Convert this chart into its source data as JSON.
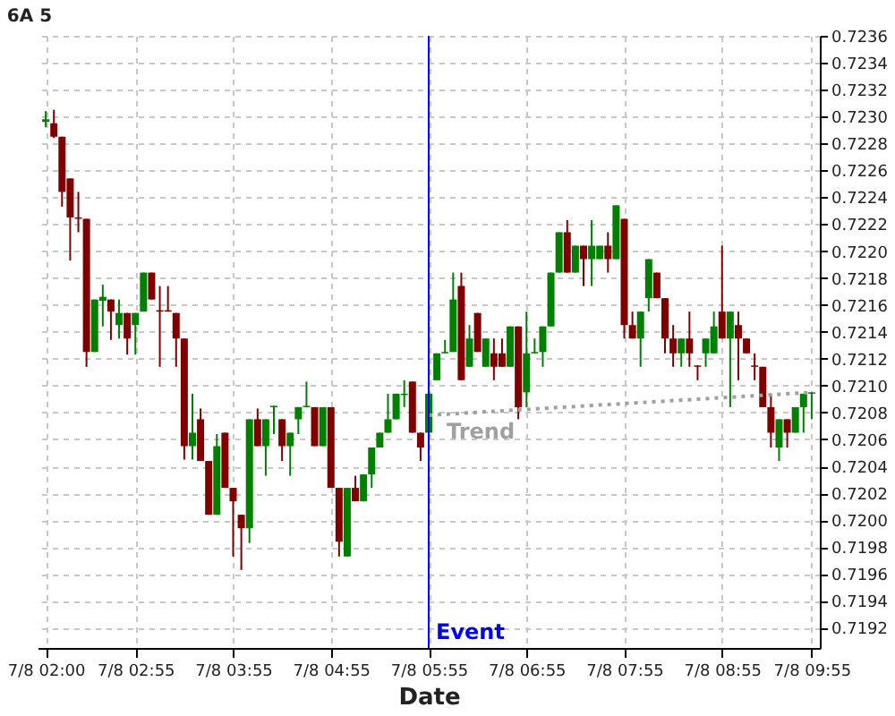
{
  "chart_data": {
    "type": "candlestick",
    "title": "6A 5",
    "xlabel": "Date",
    "categories": [
      "7/8 02:00",
      null,
      null,
      null,
      null,
      null,
      null,
      null,
      null,
      null,
      null,
      "7/8 02:55",
      null,
      null,
      null,
      null,
      null,
      null,
      null,
      null,
      null,
      null,
      null,
      "7/8 03:55",
      null,
      null,
      null,
      null,
      null,
      null,
      null,
      null,
      null,
      null,
      null,
      "7/8 04:55",
      null,
      null,
      null,
      null,
      null,
      null,
      null,
      null,
      null,
      null,
      null,
      "7/8 05:55",
      null,
      null,
      null,
      null,
      null,
      null,
      null,
      null,
      null,
      null,
      null,
      "7/8 06:55",
      null,
      null,
      null,
      null,
      null,
      null,
      null,
      null,
      null,
      null,
      null,
      "7/8 07:55",
      null,
      null,
      null,
      null,
      null,
      null,
      null,
      null,
      null,
      null,
      null,
      "7/8 08:55",
      null,
      null,
      null,
      null,
      null,
      null,
      null,
      null,
      null,
      null,
      "7/8 09:55"
    ],
    "ohlc": [
      [
        0.72296,
        0.72304,
        0.72292,
        0.72298
      ],
      [
        0.72295,
        0.72305,
        0.72284,
        0.72285
      ],
      [
        0.72285,
        0.72285,
        0.72233,
        0.72244
      ],
      [
        0.72254,
        0.72254,
        0.72193,
        0.72225
      ],
      [
        0.72225,
        0.72244,
        0.72214,
        0.72224
      ],
      [
        0.72224,
        0.72224,
        0.72114,
        0.72125
      ],
      [
        0.72125,
        0.72164,
        0.72125,
        0.72164
      ],
      [
        0.72163,
        0.72175,
        0.72144,
        0.72166
      ],
      [
        0.72164,
        0.72164,
        0.72134,
        0.72155
      ],
      [
        0.72145,
        0.72164,
        0.72135,
        0.72154
      ],
      [
        0.72154,
        0.72154,
        0.72123,
        0.72135
      ],
      [
        0.72145,
        0.72154,
        0.72123,
        0.72154
      ],
      [
        0.72155,
        0.72184,
        0.72155,
        0.72184
      ],
      [
        0.72184,
        0.72184,
        0.72164,
        0.72164
      ],
      [
        0.72156,
        0.72174,
        0.72114,
        0.72155
      ],
      [
        0.72156,
        0.72174,
        0.72155,
        0.72155
      ],
      [
        0.72154,
        0.72154,
        0.72114,
        0.72135
      ],
      [
        0.72135,
        0.72135,
        0.72045,
        0.72055
      ],
      [
        0.72055,
        0.72094,
        0.72045,
        0.72065
      ],
      [
        0.72075,
        0.72083,
        0.72044,
        0.72044
      ],
      [
        0.72044,
        0.72044,
        0.72004,
        0.72004
      ],
      [
        0.72004,
        0.72064,
        0.72004,
        0.72055
      ],
      [
        0.72065,
        0.72065,
        0.72024,
        0.72024
      ],
      [
        0.72024,
        0.72024,
        0.71973,
        0.72014
      ],
      [
        0.72004,
        0.72004,
        0.71963,
        0.71994
      ],
      [
        0.71994,
        0.72075,
        0.71983,
        0.72075
      ],
      [
        0.72075,
        0.72083,
        0.72055,
        0.72055
      ],
      [
        0.72055,
        0.72075,
        0.72033,
        0.72075
      ],
      [
        0.72084,
        0.72085,
        0.72064,
        0.72085
      ],
      [
        0.72075,
        0.72075,
        0.72044,
        0.72055
      ],
      [
        0.72055,
        0.72065,
        0.72033,
        0.72065
      ],
      [
        0.72075,
        0.72084,
        0.72064,
        0.72084
      ],
      [
        0.72084,
        0.72103,
        0.72084,
        0.72085
      ],
      [
        0.72084,
        0.72084,
        0.72055,
        0.72055
      ],
      [
        0.72055,
        0.72084,
        0.72055,
        0.72084
      ],
      [
        0.72084,
        0.72084,
        0.72024,
        0.72024
      ],
      [
        0.72024,
        0.72024,
        0.71973,
        0.71984
      ],
      [
        0.71973,
        0.72024,
        0.71973,
        0.72024
      ],
      [
        0.72024,
        0.72033,
        0.72014,
        0.72014
      ],
      [
        0.72014,
        0.72034,
        0.72014,
        0.72034
      ],
      [
        0.72034,
        0.72054,
        0.72024,
        0.72054
      ],
      [
        0.72054,
        0.72065,
        0.72054,
        0.72065
      ],
      [
        0.72065,
        0.72094,
        0.72065,
        0.72075
      ],
      [
        0.72075,
        0.72094,
        0.72075,
        0.72094
      ],
      [
        0.72093,
        0.72104,
        0.72084,
        0.72094
      ],
      [
        0.72103,
        0.72103,
        0.72065,
        0.72065
      ],
      [
        0.72065,
        0.72065,
        0.72044,
        0.72054
      ],
      [
        0.72065,
        0.72094,
        0.72065,
        0.72094
      ],
      [
        0.72104,
        0.72124,
        0.72104,
        0.72124
      ],
      [
        0.72124,
        0.72134,
        0.72124,
        0.72125
      ],
      [
        0.72125,
        0.72184,
        0.72125,
        0.72164
      ],
      [
        0.72174,
        0.72184,
        0.72104,
        0.72104
      ],
      [
        0.72114,
        0.72145,
        0.72114,
        0.72135
      ],
      [
        0.72154,
        0.72154,
        0.72125,
        0.72125
      ],
      [
        0.72114,
        0.72135,
        0.72114,
        0.72135
      ],
      [
        0.72124,
        0.72135,
        0.72104,
        0.72114
      ],
      [
        0.72124,
        0.72135,
        0.72114,
        0.72114
      ],
      [
        0.72114,
        0.72144,
        0.72114,
        0.72144
      ],
      [
        0.72144,
        0.72144,
        0.72075,
        0.72084
      ],
      [
        0.72095,
        0.72155,
        0.72084,
        0.72124
      ],
      [
        0.72124,
        0.72135,
        0.72124,
        0.72125
      ],
      [
        0.72125,
        0.72144,
        0.72114,
        0.72144
      ],
      [
        0.72144,
        0.72184,
        0.72144,
        0.72184
      ],
      [
        0.72184,
        0.72214,
        0.72184,
        0.72214
      ],
      [
        0.72214,
        0.72223,
        0.72184,
        0.72184
      ],
      [
        0.72184,
        0.72204,
        0.72184,
        0.72204
      ],
      [
        0.72204,
        0.72204,
        0.72174,
        0.72194
      ],
      [
        0.72194,
        0.72223,
        0.72174,
        0.72204
      ],
      [
        0.72194,
        0.72204,
        0.72194,
        0.72204
      ],
      [
        0.72204,
        0.72214,
        0.72184,
        0.72194
      ],
      [
        0.72194,
        0.72234,
        0.72194,
        0.72234
      ],
      [
        0.72224,
        0.72224,
        0.72135,
        0.72145
      ],
      [
        0.72145,
        0.72155,
        0.72135,
        0.72135
      ],
      [
        0.72135,
        0.72155,
        0.72114,
        0.72155
      ],
      [
        0.72165,
        0.72194,
        0.72155,
        0.72194
      ],
      [
        0.72184,
        0.72184,
        0.72165,
        0.72165
      ],
      [
        0.72165,
        0.72165,
        0.72124,
        0.72135
      ],
      [
        0.72135,
        0.72145,
        0.72114,
        0.72124
      ],
      [
        0.72124,
        0.72135,
        0.72114,
        0.72135
      ],
      [
        0.72135,
        0.72155,
        0.72114,
        0.72124
      ],
      [
        0.72115,
        0.72115,
        0.72104,
        0.72114
      ],
      [
        0.72124,
        0.72135,
        0.72114,
        0.72135
      ],
      [
        0.72124,
        0.72155,
        0.72124,
        0.72144
      ],
      [
        0.72155,
        0.72204,
        0.72135,
        0.72135
      ],
      [
        0.72135,
        0.72155,
        0.72084,
        0.72155
      ],
      [
        0.72145,
        0.72155,
        0.72104,
        0.72135
      ],
      [
        0.72135,
        0.72135,
        0.72124,
        0.72124
      ],
      [
        0.72115,
        0.72124,
        0.72104,
        0.72114
      ],
      [
        0.72114,
        0.72114,
        0.72084,
        0.72084
      ],
      [
        0.72084,
        0.72094,
        0.72054,
        0.72065
      ],
      [
        0.72054,
        0.72075,
        0.72044,
        0.72075
      ],
      [
        0.72075,
        0.72075,
        0.72054,
        0.72065
      ],
      [
        0.72065,
        0.72084,
        0.72065,
        0.72084
      ],
      [
        0.72084,
        0.72094,
        0.72065,
        0.72094
      ],
      [
        0.72094,
        0.72095,
        0.72075,
        0.72095
      ]
    ],
    "colors": [
      "#008000",
      "#800000",
      "#800000",
      "#800000",
      "#800000",
      "#800000",
      "#008000",
      "#008000",
      "#800000",
      "#008000",
      "#800000",
      "#008000",
      "#008000",
      "#800000",
      "#800000",
      "#800000",
      "#800000",
      "#800000",
      "#008000",
      "#800000",
      "#800000",
      "#008000",
      "#800000",
      "#800000",
      "#800000",
      "#008000",
      "#800000",
      "#008000",
      "#008000",
      "#800000",
      "#008000",
      "#008000",
      "#008000",
      "#800000",
      "#008000",
      "#800000",
      "#800000",
      "#008000",
      "#800000",
      "#008000",
      "#008000",
      "#008000",
      "#008000",
      "#008000",
      "#008000",
      "#800000",
      "#800000",
      "#008000",
      "#008000",
      "#008000",
      "#008000",
      "#800000",
      "#008000",
      "#800000",
      "#008000",
      "#800000",
      "#800000",
      "#008000",
      "#800000",
      "#008000",
      "#008000",
      "#008000",
      "#008000",
      "#008000",
      "#800000",
      "#008000",
      "#800000",
      "#008000",
      "#008000",
      "#800000",
      "#008000",
      "#800000",
      "#800000",
      "#008000",
      "#008000",
      "#800000",
      "#800000",
      "#800000",
      "#008000",
      "#800000",
      "#800000",
      "#008000",
      "#008000",
      "#800000",
      "#008000",
      "#800000",
      "#800000",
      "#800000",
      "#800000",
      "#800000",
      "#008000",
      "#800000",
      "#008000",
      "#008000",
      "#008000"
    ],
    "series": [
      {
        "name": "Trend",
        "type": "line",
        "color": "#a0a0a0",
        "line_style": "dotted",
        "x": [
          "7/8 05:55",
          "7/8 09:55"
        ],
        "values": [
          0.72078,
          0.72095
        ]
      }
    ],
    "ref_lines": [
      {
        "axis": "x",
        "value": "7/8 05:55",
        "label": "Event",
        "color": "#0000ff"
      }
    ],
    "ylim": [
      0.71905,
      0.7236
    ],
    "yticks": [
      0.7192,
      0.7194,
      0.7196,
      0.7198,
      {
        "value": 0.72,
        "label": "0.7200"
      },
      0.7202,
      0.7204,
      0.7206,
      0.7208,
      {
        "value": 0.721,
        "label": "0.7210"
      },
      0.7212,
      0.7214,
      0.7216,
      0.7218,
      {
        "value": 0.722,
        "label": "0.7220"
      },
      0.7222,
      0.7224,
      0.7226,
      0.7228,
      {
        "value": 0.723,
        "label": "0.7230"
      },
      0.7232,
      0.7234,
      0.7236
    ],
    "grid": true
  }
}
